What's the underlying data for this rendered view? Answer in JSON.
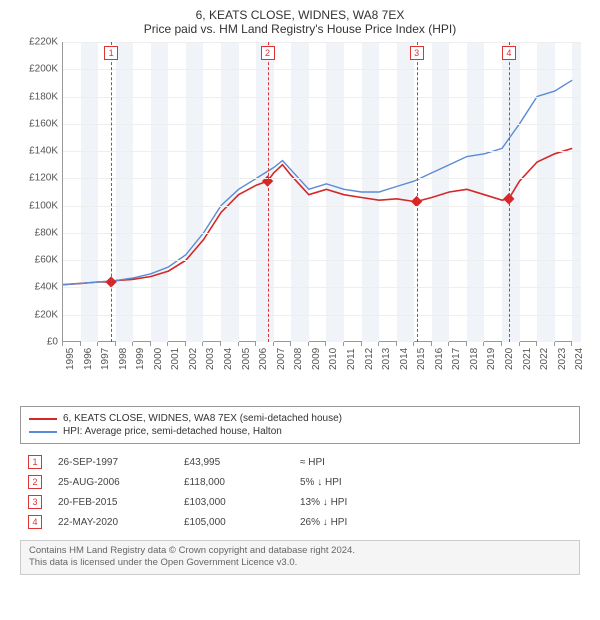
{
  "title_line1": "6, KEATS CLOSE, WIDNES, WA8 7EX",
  "title_line2": "Price paid vs. HM Land Registry's House Price Index (HPI)",
  "chart": {
    "type": "line",
    "x_years": [
      1995,
      1996,
      1997,
      1998,
      1999,
      2000,
      2001,
      2002,
      2003,
      2004,
      2005,
      2006,
      2007,
      2008,
      2009,
      2010,
      2011,
      2012,
      2013,
      2014,
      2015,
      2016,
      2017,
      2018,
      2019,
      2020,
      2021,
      2022,
      2023,
      2024
    ],
    "x_min": 1995,
    "x_max": 2024.5,
    "y_ticks": [
      0,
      20000,
      40000,
      60000,
      80000,
      100000,
      120000,
      140000,
      160000,
      180000,
      200000,
      220000
    ],
    "y_labels": [
      "£0",
      "£20K",
      "£40K",
      "£60K",
      "£80K",
      "£100K",
      "£120K",
      "£140K",
      "£160K",
      "£180K",
      "£200K",
      "£220K"
    ],
    "y_min": 0,
    "y_max": 220000,
    "bands_start_even_year": true,
    "grid_color": "#eeeeee",
    "band_color": "#f0f4f9",
    "series": [
      {
        "name": "property",
        "color": "#d62728",
        "width": 1.6,
        "points": [
          [
            1995,
            42000
          ],
          [
            1996,
            43000
          ],
          [
            1997,
            44000
          ],
          [
            1997.74,
            43995
          ],
          [
            1998,
            45000
          ],
          [
            1999,
            46000
          ],
          [
            2000,
            48000
          ],
          [
            2001,
            52000
          ],
          [
            2002,
            60000
          ],
          [
            2003,
            75000
          ],
          [
            2004,
            95000
          ],
          [
            2005,
            108000
          ],
          [
            2006,
            115000
          ],
          [
            2006.65,
            118000
          ],
          [
            2007,
            124000
          ],
          [
            2007.5,
            130000
          ],
          [
            2008,
            122000
          ],
          [
            2009,
            108000
          ],
          [
            2010,
            112000
          ],
          [
            2011,
            108000
          ],
          [
            2012,
            106000
          ],
          [
            2013,
            104000
          ],
          [
            2014,
            105000
          ],
          [
            2015,
            103000
          ],
          [
            2015.14,
            103000
          ],
          [
            2016,
            106000
          ],
          [
            2017,
            110000
          ],
          [
            2018,
            112000
          ],
          [
            2019,
            108000
          ],
          [
            2020,
            104000
          ],
          [
            2020.39,
            105000
          ],
          [
            2021,
            118000
          ],
          [
            2022,
            132000
          ],
          [
            2023,
            138000
          ],
          [
            2024,
            142000
          ]
        ]
      },
      {
        "name": "hpi",
        "color": "#5b8bd4",
        "width": 1.4,
        "points": [
          [
            1995,
            42000
          ],
          [
            1996,
            43000
          ],
          [
            1997,
            44000
          ],
          [
            1998,
            45000
          ],
          [
            1999,
            47000
          ],
          [
            2000,
            50000
          ],
          [
            2001,
            55000
          ],
          [
            2002,
            64000
          ],
          [
            2003,
            80000
          ],
          [
            2004,
            100000
          ],
          [
            2005,
            112000
          ],
          [
            2006,
            120000
          ],
          [
            2007,
            128000
          ],
          [
            2007.5,
            133000
          ],
          [
            2008,
            126000
          ],
          [
            2009,
            112000
          ],
          [
            2010,
            116000
          ],
          [
            2011,
            112000
          ],
          [
            2012,
            110000
          ],
          [
            2013,
            110000
          ],
          [
            2014,
            114000
          ],
          [
            2015,
            118000
          ],
          [
            2016,
            124000
          ],
          [
            2017,
            130000
          ],
          [
            2018,
            136000
          ],
          [
            2019,
            138000
          ],
          [
            2020,
            142000
          ],
          [
            2021,
            160000
          ],
          [
            2022,
            180000
          ],
          [
            2023,
            184000
          ],
          [
            2024,
            192000
          ]
        ]
      }
    ],
    "sale_markers": [
      {
        "n": "1",
        "year": 1997.74,
        "price": 43995
      },
      {
        "n": "2",
        "year": 2006.65,
        "price": 118000
      },
      {
        "n": "3",
        "year": 2015.14,
        "price": 103000
      },
      {
        "n": "4",
        "year": 2020.39,
        "price": 105000
      }
    ]
  },
  "legend": [
    {
      "color": "#d62728",
      "label": "6, KEATS CLOSE, WIDNES, WA8 7EX (semi-detached house)"
    },
    {
      "color": "#5b8bd4",
      "label": "HPI: Average price, semi-detached house, Halton"
    }
  ],
  "events": [
    {
      "n": "1",
      "date": "26-SEP-1997",
      "price": "£43,995",
      "diff": "≈ HPI"
    },
    {
      "n": "2",
      "date": "25-AUG-2006",
      "price": "£118,000",
      "diff": "5% ↓ HPI"
    },
    {
      "n": "3",
      "date": "20-FEB-2015",
      "price": "£103,000",
      "diff": "13% ↓ HPI"
    },
    {
      "n": "4",
      "date": "22-MAY-2020",
      "price": "£105,000",
      "diff": "26% ↓ HPI"
    }
  ],
  "footer_line1": "Contains HM Land Registry data © Crown copyright and database right 2024.",
  "footer_line2": "This data is licensed under the Open Government Licence v3.0."
}
